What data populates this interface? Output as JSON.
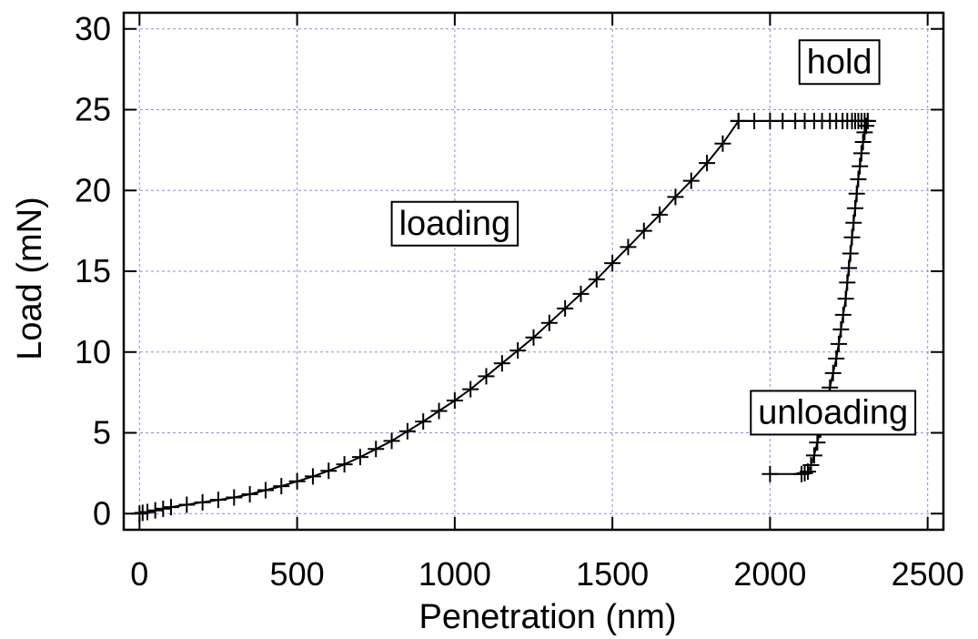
{
  "chart_data": {
    "type": "line",
    "xlabel": "Penetration (nm)",
    "ylabel": "Load (mN)",
    "xlim": [
      -50,
      2550
    ],
    "ylim": [
      -1,
      31
    ],
    "xticks": [
      0,
      500,
      1000,
      1500,
      2000,
      2500
    ],
    "yticks": [
      0,
      5,
      10,
      15,
      20,
      25,
      30
    ],
    "xtick_labels": [
      "0",
      "500",
      "1000",
      "1500",
      "2000",
      "2500"
    ],
    "ytick_labels": [
      "0",
      "5",
      "10",
      "15",
      "20",
      "25",
      "30"
    ],
    "grid": true,
    "marker": "plus",
    "annotations": [
      {
        "text": "loading",
        "x": 1000,
        "y": 18
      },
      {
        "text": "hold",
        "x": 2220,
        "y": 28
      },
      {
        "text": "unloading",
        "x": 2200,
        "y": 6.3
      }
    ],
    "series": [
      {
        "segment": "loading",
        "x": [
          0,
          10,
          25,
          50,
          75,
          100,
          150,
          200,
          250,
          300,
          350,
          400,
          450,
          500,
          550,
          600,
          650,
          700,
          750,
          800,
          850,
          900,
          950,
          1000,
          1050,
          1100,
          1150,
          1200,
          1250,
          1300,
          1350,
          1400,
          1450,
          1500,
          1550,
          1600,
          1650,
          1700,
          1750,
          1800,
          1850,
          1900
        ],
        "y": [
          0,
          0.05,
          0.1,
          0.2,
          0.3,
          0.4,
          0.55,
          0.7,
          0.85,
          1.0,
          1.2,
          1.45,
          1.7,
          2.0,
          2.3,
          2.65,
          3.05,
          3.5,
          4.0,
          4.5,
          5.1,
          5.7,
          6.35,
          7.0,
          7.7,
          8.5,
          9.3,
          10.1,
          10.9,
          11.8,
          12.7,
          13.6,
          14.5,
          15.5,
          16.5,
          17.5,
          18.5,
          19.6,
          20.6,
          21.7,
          22.9,
          24.3
        ]
      },
      {
        "segment": "hold",
        "x": [
          1900,
          1950,
          2000,
          2040,
          2080,
          2110,
          2140,
          2165,
          2190,
          2210,
          2230,
          2245,
          2260,
          2270,
          2280,
          2290,
          2300,
          2310
        ],
        "y": [
          24.3,
          24.3,
          24.3,
          24.3,
          24.3,
          24.3,
          24.3,
          24.3,
          24.3,
          24.3,
          24.3,
          24.3,
          24.3,
          24.3,
          24.3,
          24.3,
          24.3,
          24.3
        ]
      },
      {
        "segment": "unloading",
        "x": [
          2310,
          2305,
          2300,
          2295,
          2290,
          2285,
          2280,
          2275,
          2270,
          2265,
          2260,
          2255,
          2250,
          2245,
          2240,
          2232,
          2225,
          2218,
          2210,
          2200,
          2190,
          2180,
          2170,
          2160,
          2150,
          2140,
          2130,
          2120,
          2110,
          2100,
          2000
        ],
        "y": [
          24.3,
          24.0,
          23.6,
          23.0,
          22.3,
          21.5,
          20.7,
          19.8,
          18.9,
          18.0,
          17.1,
          16.1,
          15.2,
          14.3,
          13.3,
          12.3,
          11.4,
          10.5,
          9.6,
          8.7,
          7.8,
          6.9,
          6.0,
          5.2,
          4.4,
          3.6,
          3.0,
          2.6,
          2.5,
          2.45,
          2.45
        ]
      }
    ]
  }
}
